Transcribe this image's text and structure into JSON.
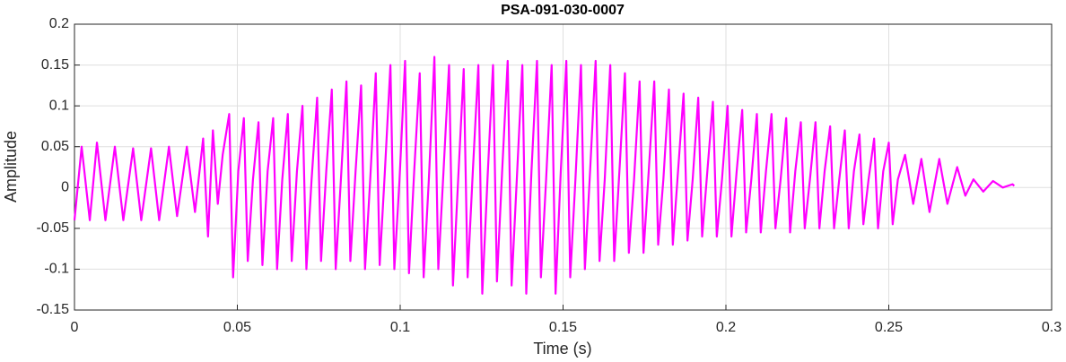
{
  "chart_data": {
    "type": "line",
    "title": "PSA-091-030-0007",
    "xlabel": "Time (s)",
    "ylabel": "Amplitude",
    "color": "#ff00ff",
    "grid": true,
    "xlim": [
      0,
      0.3
    ],
    "xticks": [
      0,
      0.05,
      0.1,
      0.15,
      0.2,
      0.25,
      0.3
    ],
    "ylim": [
      -0.15,
      0.2
    ],
    "yticks": [
      -0.15,
      -0.1,
      -0.05,
      0,
      0.05,
      0.1,
      0.15,
      0.2
    ],
    "x": [
      0,
      0.0022,
      0.0047,
      0.0069,
      0.0095,
      0.0124,
      0.015,
      0.018,
      0.0205,
      0.0235,
      0.026,
      0.029,
      0.0315,
      0.0345,
      0.037,
      0.0395,
      0.041,
      0.0425,
      0.044,
      0.0455,
      0.0475,
      0.0487,
      0.0503,
      0.052,
      0.0532,
      0.0548,
      0.0565,
      0.0577,
      0.0593,
      0.061,
      0.0622,
      0.0638,
      0.0655,
      0.0667,
      0.0683,
      0.07,
      0.0712,
      0.0728,
      0.0745,
      0.0757,
      0.0773,
      0.079,
      0.0802,
      0.0818,
      0.0835,
      0.0847,
      0.0863,
      0.088,
      0.0892,
      0.0908,
      0.0925,
      0.0937,
      0.0953,
      0.097,
      0.0982,
      0.0998,
      0.1015,
      0.1027,
      0.1043,
      0.106,
      0.1072,
      0.1088,
      0.1105,
      0.1117,
      0.1133,
      0.115,
      0.1162,
      0.1178,
      0.1195,
      0.1207,
      0.1223,
      0.124,
      0.1252,
      0.1268,
      0.1285,
      0.1297,
      0.1313,
      0.133,
      0.1342,
      0.1358,
      0.1375,
      0.1387,
      0.1403,
      0.142,
      0.1432,
      0.1448,
      0.1465,
      0.1477,
      0.1493,
      0.151,
      0.1522,
      0.1538,
      0.1555,
      0.1567,
      0.1583,
      0.16,
      0.1612,
      0.1628,
      0.1645,
      0.1657,
      0.1673,
      0.169,
      0.1702,
      0.1718,
      0.1735,
      0.1747,
      0.1763,
      0.178,
      0.1792,
      0.1808,
      0.1825,
      0.1837,
      0.1853,
      0.187,
      0.1882,
      0.1898,
      0.1915,
      0.1927,
      0.1943,
      0.196,
      0.1972,
      0.1988,
      0.2005,
      0.2017,
      0.2033,
      0.205,
      0.2062,
      0.2078,
      0.2095,
      0.2107,
      0.2123,
      0.214,
      0.2152,
      0.2168,
      0.2185,
      0.2197,
      0.2213,
      0.223,
      0.2242,
      0.2258,
      0.2275,
      0.2287,
      0.2303,
      0.232,
      0.2332,
      0.2348,
      0.2365,
      0.2377,
      0.2393,
      0.241,
      0.2422,
      0.2438,
      0.2455,
      0.2467,
      0.2483,
      0.25,
      0.2512,
      0.2528,
      0.255,
      0.2575,
      0.26,
      0.2625,
      0.2655,
      0.268,
      0.271,
      0.2735,
      0.276,
      0.279,
      0.282,
      0.285,
      0.288,
      0.2885
    ],
    "values": [
      -0.04,
      0.05,
      -0.04,
      0.055,
      -0.04,
      0.05,
      -0.04,
      0.048,
      -0.04,
      0.048,
      -0.04,
      0.05,
      -0.035,
      0.05,
      -0.03,
      0.06,
      -0.06,
      0.07,
      -0.02,
      0.04,
      0.09,
      -0.11,
      0.02,
      0.085,
      -0.09,
      0.01,
      0.08,
      -0.095,
      0.02,
      0.085,
      -0.1,
      0.01,
      0.09,
      -0.09,
      0.02,
      0.1,
      -0.1,
      0.01,
      0.11,
      -0.09,
      0.02,
      0.12,
      -0.1,
      0.01,
      0.13,
      -0.09,
      0.02,
      0.125,
      -0.1,
      0.01,
      0.14,
      -0.095,
      0.02,
      0.15,
      -0.1,
      0.01,
      0.155,
      -0.105,
      0.02,
      0.14,
      -0.11,
      0.01,
      0.16,
      -0.1,
      0.02,
      0.15,
      -0.12,
      0.01,
      0.145,
      -0.11,
      0.02,
      0.15,
      -0.13,
      0.01,
      0.15,
      -0.115,
      0.02,
      0.155,
      -0.12,
      0.01,
      0.15,
      -0.13,
      0.02,
      0.155,
      -0.11,
      0.01,
      0.15,
      -0.13,
      0.02,
      0.155,
      -0.11,
      0.01,
      0.15,
      -0.1,
      0.02,
      0.155,
      -0.09,
      0.01,
      0.15,
      -0.09,
      0.02,
      0.14,
      -0.08,
      0.01,
      0.13,
      -0.08,
      0.02,
      0.13,
      -0.07,
      0.01,
      0.12,
      -0.07,
      0.02,
      0.115,
      -0.065,
      0.01,
      0.11,
      -0.06,
      0.02,
      0.105,
      -0.06,
      0.01,
      0.1,
      -0.06,
      0.02,
      0.095,
      -0.055,
      0.01,
      0.09,
      -0.055,
      0.02,
      0.09,
      -0.05,
      0.01,
      0.085,
      -0.055,
      0.02,
      0.08,
      -0.05,
      0.01,
      0.08,
      -0.05,
      0.02,
      0.075,
      -0.05,
      0.01,
      0.07,
      -0.05,
      0.02,
      0.065,
      -0.045,
      0.01,
      0.06,
      -0.05,
      0.02,
      0.055,
      -0.045,
      0.01,
      0.04,
      -0.02,
      0.035,
      -0.03,
      0.035,
      -0.02,
      0.025,
      -0.01,
      0.01,
      -0.005,
      0.008,
      0,
      0.004,
      0.002
    ]
  }
}
